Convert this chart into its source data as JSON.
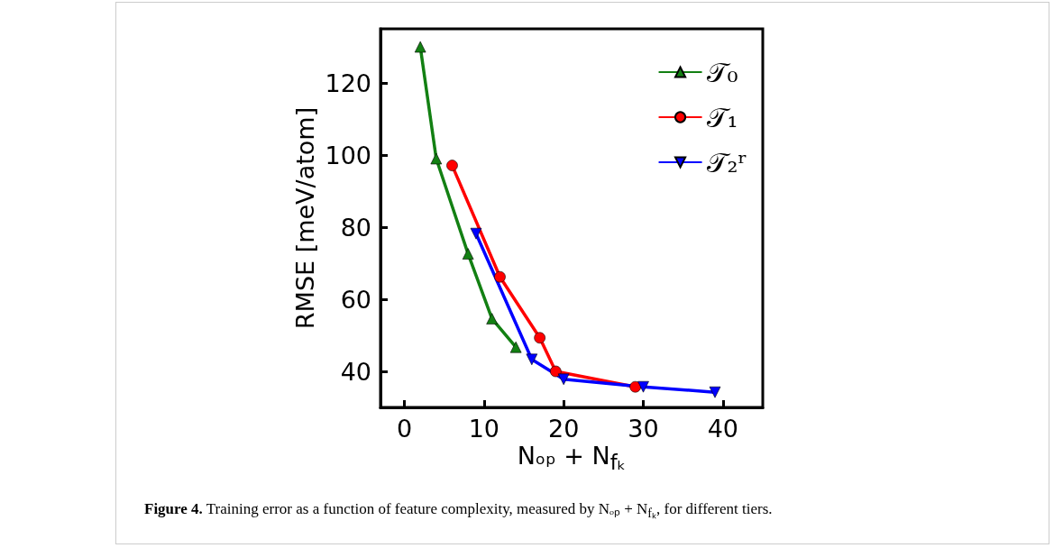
{
  "chart_data": {
    "type": "line",
    "xlabel": "Nₒₚ + N$_{fₖ}$",
    "ylabel": "RMSE [meV/atom]",
    "xlim": [
      -3,
      45
    ],
    "xticks": [
      0,
      10,
      20,
      30,
      40
    ],
    "ylim": [
      30,
      135
    ],
    "yticks": [
      40,
      60,
      80,
      100,
      120
    ],
    "grid": false,
    "legend": "top right",
    "series": [
      {
        "name": "𝒯₀",
        "color": "#138013",
        "marker": "triangle",
        "x": [
          2,
          4,
          8,
          11,
          14
        ],
        "values": [
          130,
          99,
          72.6,
          54.6,
          46.7
        ]
      },
      {
        "name": "𝒯₁",
        "color": "#ff0000",
        "marker": "circle",
        "x": [
          6,
          12,
          17,
          19,
          29
        ],
        "values": [
          97.1,
          66.2,
          49.3,
          40,
          35.7
        ]
      },
      {
        "name": "𝒯₂ʳ",
        "color": "#0000ff",
        "marker": "triangle-down",
        "x": [
          9,
          16,
          20,
          30,
          39
        ],
        "values": [
          78.2,
          43.3,
          37.8,
          35.7,
          34.2
        ]
      }
    ],
    "annotations": [
      "$^{}$**Figure 4.** Training error as a function of feature complexity, measured by Nₒₚ + N$_{fₖ}$, for different tiers."
    ]
  }
}
